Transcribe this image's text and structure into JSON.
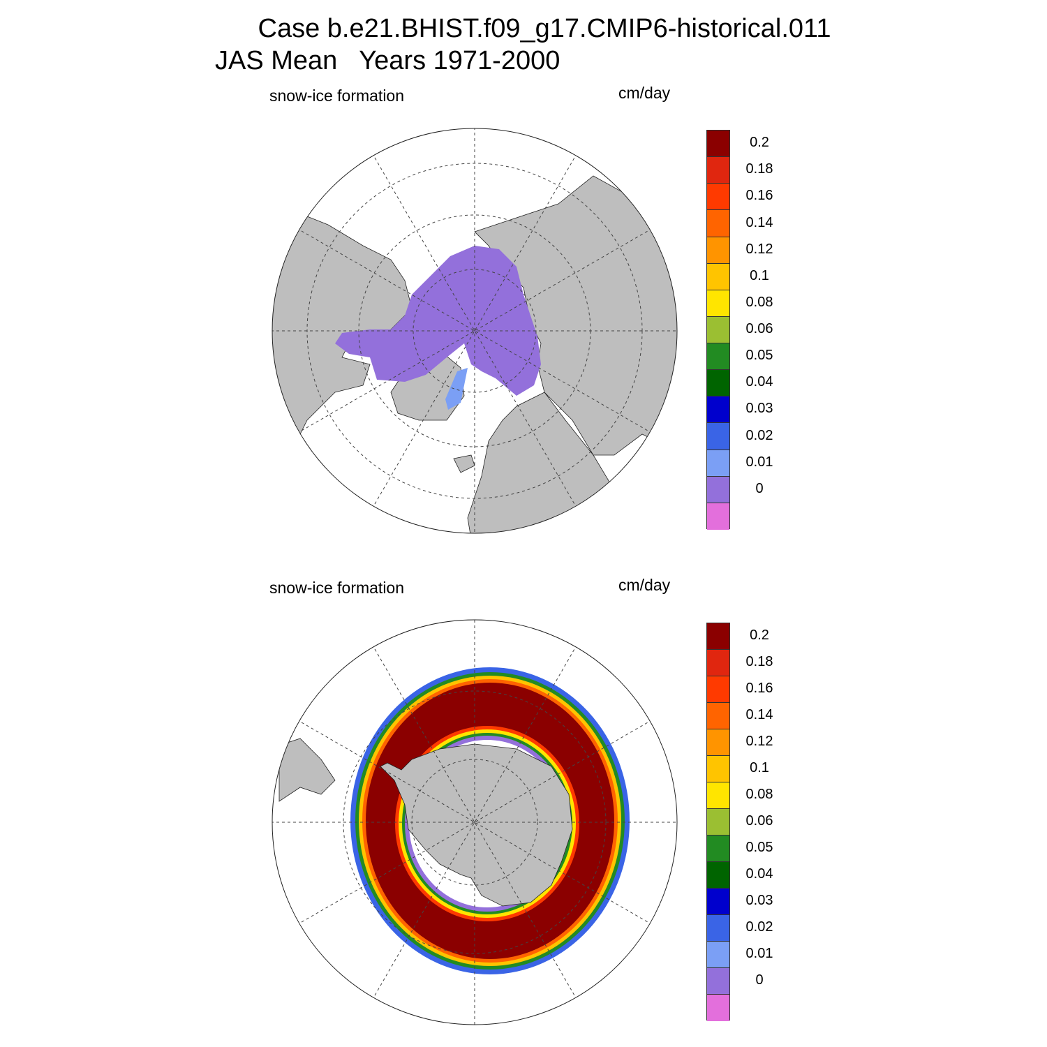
{
  "header": {
    "line1": "Case b.e21.BHIST.f09_g17.CMIP6-historical.011",
    "line2": "JAS Mean   Years 1971-2000"
  },
  "panels": [
    {
      "label": "snow-ice formation",
      "units": "cm/day",
      "hemisphere": "north"
    },
    {
      "label": "snow-ice formation",
      "units": "cm/day",
      "hemisphere": "south"
    }
  ],
  "colorbar": {
    "labels": [
      "0.2",
      "0.18",
      "0.16",
      "0.14",
      "0.12",
      "0.1",
      "0.08",
      "0.06",
      "0.05",
      "0.04",
      "0.03",
      "0.02",
      "0.01",
      "0"
    ],
    "colors": [
      "#8b0000",
      "#e0260f",
      "#ff3a00",
      "#ff6400",
      "#ff9400",
      "#ffc400",
      "#ffe500",
      "#9bbf32",
      "#228b22",
      "#006400",
      "#0000cd",
      "#3a64e6",
      "#7b9ff5",
      "#9370db",
      "#e36fdc"
    ]
  },
  "map_colors": {
    "land": "#bebebe",
    "ocean": "#ffffff",
    "north_sea_ice": "#9370db",
    "north_low": "#7b9ff5"
  }
}
